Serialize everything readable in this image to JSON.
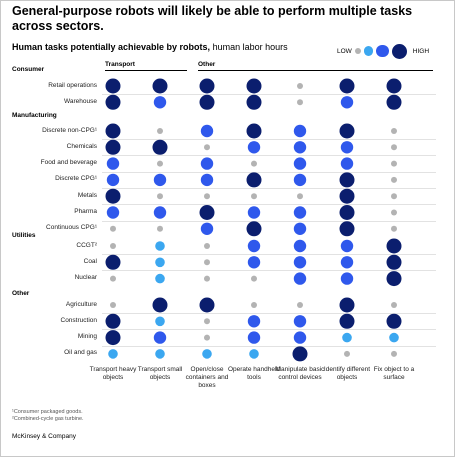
{
  "title": "General-purpose robots will likely be able to perform multiple tasks across sectors.",
  "subtitle_bold": "Human tasks potentially achievable by robots,",
  "subtitle_rest": " human labor hours",
  "legend": {
    "low": "LOW",
    "high": "HIGH"
  },
  "footnotes": [
    "¹Consumer packaged goods.",
    "²Combined-cycle gas turbine."
  ],
  "source": "McKinsey & Company",
  "colors": {
    "level1": "#b3b3b3",
    "level2": "#3ba7f0",
    "level3": "#2f58ec",
    "level4": "#0b1e6e"
  },
  "chart_data": {
    "type": "heatmap",
    "column_groups": [
      {
        "name": "Transport",
        "columns": [
          0,
          1
        ]
      },
      {
        "name": "Other",
        "columns": [
          2,
          3,
          4,
          5,
          6
        ]
      }
    ],
    "columns": [
      "Transport heavy objects",
      "Transport small objects",
      "Open/close containers and boxes",
      "Operate handheld tools",
      "Manipulate basic control devices",
      "Identify different objects",
      "Fix object to a surface"
    ],
    "scale": "1 = low, 4 = high",
    "categories": [
      {
        "name": "Consumer",
        "rows": [
          {
            "label": "Retail operations",
            "values": [
              4,
              4,
              4,
              4,
              1,
              4,
              4
            ]
          },
          {
            "label": "Warehouse",
            "values": [
              4,
              3,
              4,
              4,
              1,
              3,
              4
            ]
          }
        ]
      },
      {
        "name": "Manufacturing",
        "rows": [
          {
            "label": "Discrete non-CPG¹",
            "values": [
              4,
              1,
              3,
              4,
              3,
              4,
              1
            ]
          },
          {
            "label": "Chemicals",
            "values": [
              4,
              4,
              1,
              3,
              3,
              3,
              1
            ]
          },
          {
            "label": "Food and beverage",
            "values": [
              3,
              1,
              3,
              1,
              3,
              3,
              1
            ]
          },
          {
            "label": "Discrete CPG¹",
            "values": [
              3,
              3,
              3,
              4,
              3,
              4,
              1
            ]
          },
          {
            "label": "Metals",
            "values": [
              4,
              1,
              1,
              1,
              1,
              4,
              1
            ]
          },
          {
            "label": "Pharma",
            "values": [
              3,
              3,
              4,
              3,
              3,
              4,
              1
            ]
          },
          {
            "label": "Continuous CPG¹",
            "values": [
              1,
              1,
              3,
              4,
              3,
              4,
              1
            ]
          }
        ]
      },
      {
        "name": "Utilities",
        "rows": [
          {
            "label": "CCGT²",
            "values": [
              1,
              2,
              1,
              3,
              3,
              3,
              4
            ]
          },
          {
            "label": "Coal",
            "values": [
              4,
              2,
              1,
              3,
              3,
              3,
              4
            ]
          },
          {
            "label": "Nuclear",
            "values": [
              1,
              2,
              1,
              1,
              3,
              3,
              4
            ]
          }
        ]
      },
      {
        "name": "Other",
        "rows": [
          {
            "label": "Agriculture",
            "values": [
              1,
              4,
              4,
              1,
              1,
              4,
              1
            ]
          },
          {
            "label": "Construction",
            "values": [
              4,
              2,
              1,
              3,
              3,
              4,
              4
            ]
          },
          {
            "label": "Mining",
            "values": [
              4,
              3,
              1,
              3,
              3,
              2,
              2
            ]
          },
          {
            "label": "Oil and gas",
            "values": [
              2,
              2,
              2,
              2,
              4,
              1,
              1
            ]
          }
        ]
      }
    ]
  }
}
